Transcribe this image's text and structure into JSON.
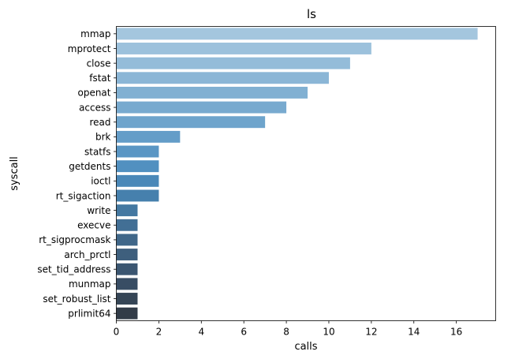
{
  "chart_data": {
    "type": "bar",
    "orientation": "horizontal",
    "title": "ls",
    "xlabel": "calls",
    "ylabel": "syscall",
    "xlim": [
      0,
      17.85
    ],
    "xticks": [
      0,
      2,
      4,
      6,
      8,
      10,
      12,
      14,
      16
    ],
    "grid": false,
    "legend": "none",
    "palette": "Blues_d",
    "categories": [
      "mmap",
      "mprotect",
      "close",
      "fstat",
      "openat",
      "access",
      "read",
      "brk",
      "statfs",
      "getdents",
      "ioctl",
      "rt_sigaction",
      "write",
      "execve",
      "rt_sigprocmask",
      "arch_prctl",
      "set_tid_address",
      "munmap",
      "set_robust_list",
      "prlimit64"
    ],
    "values": [
      17,
      12,
      11,
      10,
      9,
      8,
      7,
      3,
      2,
      2,
      2,
      2,
      1,
      1,
      1,
      1,
      1,
      1,
      1,
      1
    ],
    "colors": [
      "#a4c6de",
      "#9cc1dc",
      "#94bcd9",
      "#8bb6d6",
      "#81b0d2",
      "#78aacf",
      "#6ea4cc",
      "#649dc8",
      "#5a96c4",
      "#5190c0",
      "#4a88b8",
      "#4680ad",
      "#4478a1",
      "#426f95",
      "#406789",
      "#3e5f7d",
      "#3b5671",
      "#384d64",
      "#354556",
      "#323c48"
    ]
  }
}
